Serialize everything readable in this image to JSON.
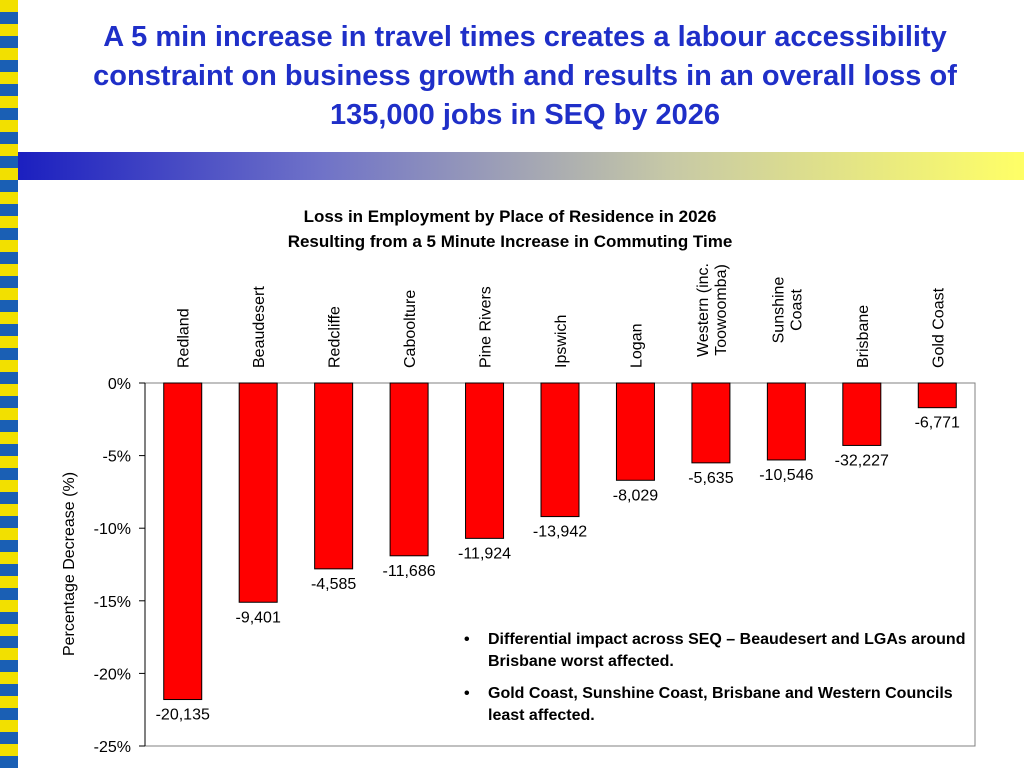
{
  "slide": {
    "title": "A 5 min increase in travel times creates a labour accessibility constraint on business growth and results in an overall loss of 135,000 jobs in SEQ by 2026"
  },
  "chart_data": {
    "type": "bar",
    "title_lines": [
      "Loss in Employment by Place of Residence in 2026",
      "Resulting from a 5 Minute Increase in Commuting Time"
    ],
    "ylabel": "Percentage Decrease (%)",
    "ylim": [
      -25,
      0
    ],
    "yticks": [
      0,
      -5,
      -10,
      -15,
      -20,
      -25
    ],
    "ytick_labels": [
      "0%",
      "-5%",
      "-10%",
      "-15%",
      "-20%",
      "-25%"
    ],
    "grid": false,
    "bar_color": "#ff0000",
    "categories": [
      "Redland",
      "Beaudesert",
      "Redcliffe",
      "Caboolture",
      "Pine Rivers",
      "Ipswich",
      "Logan",
      "Western (inc. Toowoomba)",
      "Sunshine Coast",
      "Brisbane",
      "Gold Coast"
    ],
    "category_label_lines": [
      [
        "Redland"
      ],
      [
        "Beaudesert"
      ],
      [
        "Redcliffe"
      ],
      [
        "Caboolture"
      ],
      [
        "Pine Rivers"
      ],
      [
        "Ipswich"
      ],
      [
        "Logan"
      ],
      [
        "Western (inc.",
        "Toowoomba)"
      ],
      [
        "Sunshine",
        "Coast"
      ],
      [
        "Brisbane"
      ],
      [
        "Gold Coast"
      ]
    ],
    "values": [
      -21.8,
      -15.1,
      -12.8,
      -11.9,
      -10.7,
      -9.2,
      -6.7,
      -5.5,
      -5.3,
      -4.3,
      -1.7
    ],
    "data_labels": [
      "-20,135",
      "-9,401",
      "-4,585",
      "-11,686",
      "-11,924",
      "-13,942",
      "-8,029",
      "-5,635",
      "-10,546",
      "-32,227",
      "-6,771"
    ]
  },
  "notes": {
    "bullets": [
      "Differential impact across SEQ – Beaudesert and LGAs around Brisbane worst affected.",
      "Gold Coast, Sunshine Coast, Brisbane and Western Councils least affected."
    ]
  }
}
